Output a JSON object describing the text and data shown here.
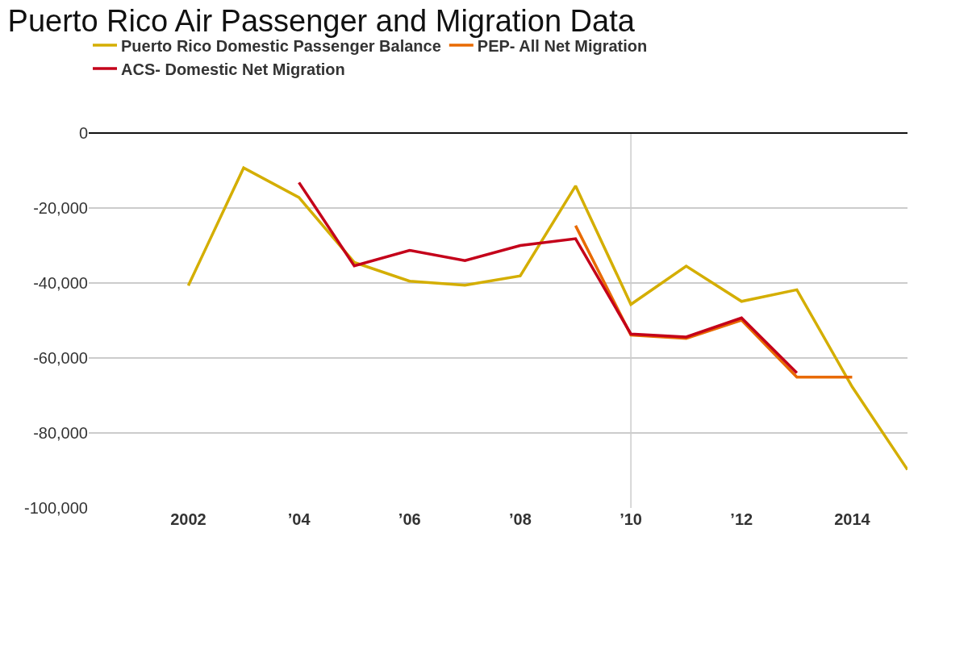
{
  "chart_data": {
    "type": "line",
    "title": "Puerto Rico Air Passenger and Migration Data",
    "x": [
      2002,
      2003,
      2004,
      2005,
      2006,
      2007,
      2008,
      2009,
      2010,
      2011,
      2012,
      2013,
      2014,
      2015
    ],
    "series": [
      {
        "name": "Puerto Rico Domestic Passenger Balance",
        "color": "#d4ae00",
        "values": [
          -40700,
          -9300,
          -17200,
          -34500,
          -39500,
          -40600,
          -38100,
          -14100,
          -45700,
          -35500,
          -44900,
          -41800,
          -67700,
          -89800
        ]
      },
      {
        "name": "PEP- All Net Migration",
        "color": "#e86a00",
        "values": [
          null,
          null,
          null,
          null,
          null,
          null,
          null,
          -24700,
          -53900,
          -54800,
          -49900,
          -65100,
          -65100,
          null
        ]
      },
      {
        "name": "ACS- Domestic Net Migration",
        "color": "#c4001a",
        "values": [
          null,
          null,
          -13200,
          -35400,
          -31300,
          -34000,
          -30000,
          -28200,
          -53600,
          -54400,
          -49300,
          -64000,
          null,
          null
        ]
      }
    ],
    "xlim": [
      2000.2,
      2015
    ],
    "xticks": [
      2002,
      {
        "value": 2004,
        "label": "’04"
      },
      {
        "value": 2006,
        "label": "’06"
      },
      {
        "value": 2008,
        "label": "’08"
      },
      {
        "value": 2010,
        "label": "’10"
      },
      {
        "value": 2012,
        "label": "’12"
      },
      2014
    ],
    "ylim": [
      -100000,
      0
    ],
    "yticks": [
      {
        "value": -100000,
        "label": "-100,000"
      },
      {
        "value": -80000,
        "label": "-80,000"
      },
      {
        "value": -60000,
        "label": "-60,000"
      },
      {
        "value": -40000,
        "label": "-40,000"
      },
      {
        "value": -20000,
        "label": "-20,000"
      },
      0
    ],
    "ref_lines": [
      {
        "axis": "x",
        "value": 2010,
        "color": "#cccccc"
      }
    ],
    "grid": "y",
    "legend": "top left",
    "marker": "none",
    "line_style": "solid"
  }
}
